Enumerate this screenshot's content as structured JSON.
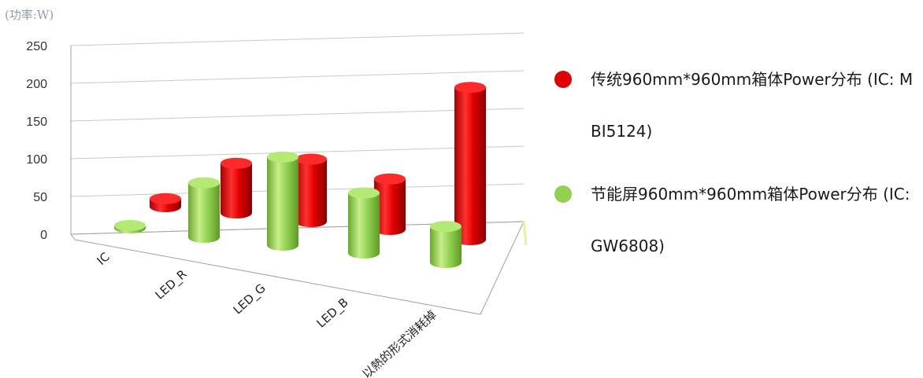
{
  "chart_data": {
    "type": "bar",
    "variant": "3d-cylinder",
    "unit_label": "(功率:W)",
    "categories": [
      "IC",
      "LED_R",
      "LED_G",
      "LED_B",
      "以熱的形式消耗掉"
    ],
    "yticks": [
      "0",
      "50",
      "100",
      "150",
      "200",
      "250"
    ],
    "ylim": [
      0,
      250
    ],
    "series": [
      {
        "name": "传统960mm*960mm箱体Power分布 (IC: MBI5124)",
        "color": "#e00000",
        "values": [
          10,
          62,
          78,
          63,
          190
        ]
      },
      {
        "name": "节能屏960mm*960mm箱体Power分布 (IC: GW6808)",
        "color": "#92d050",
        "values": [
          3,
          68,
          110,
          75,
          45
        ]
      }
    ],
    "legend_position": "right",
    "grid": true
  }
}
